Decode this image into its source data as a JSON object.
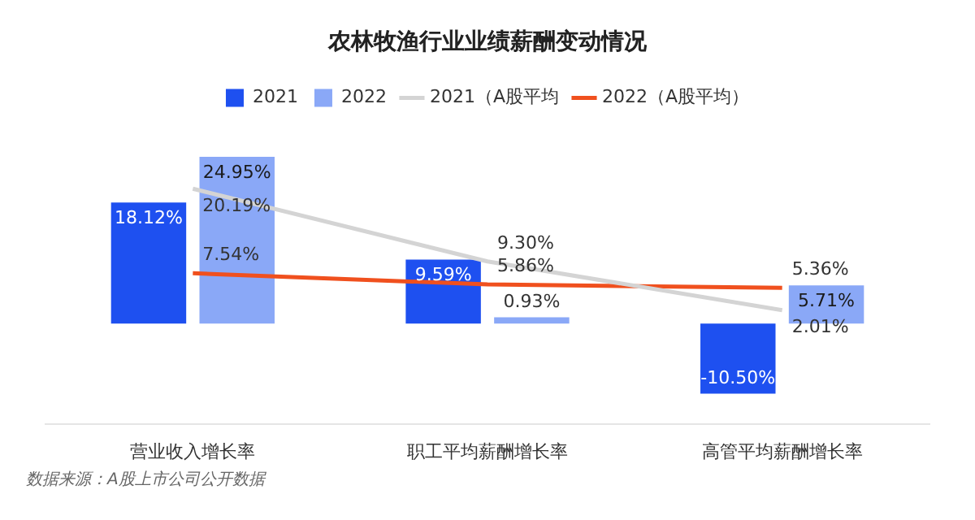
{
  "chart_data": {
    "type": "bar",
    "title": "农林牧渔行业业绩薪酬变动情况",
    "categories": [
      "营业收入增长率",
      "职工平均薪酬增长率",
      "高管平均薪酬增长率"
    ],
    "series": [
      {
        "name": "2021",
        "color": "#1e50f0",
        "values": [
          18.12,
          9.59,
          -10.5
        ],
        "value_labels": [
          "18.12%",
          "9.59%",
          "-10.50%"
        ]
      },
      {
        "name": "2022",
        "color": "#8aa8f7",
        "values": [
          24.95,
          0.93,
          5.71
        ],
        "value_labels": [
          "24.95%",
          "0.93%",
          "5.71%"
        ]
      },
      {
        "name": "2021（A股平均",
        "type": "line",
        "color": "#d4d4d4",
        "values": [
          20.19,
          9.3,
          2.01
        ],
        "value_labels": [
          "20.19%",
          "9.30%",
          "2.01%"
        ]
      },
      {
        "name": "2022（A股平均）",
        "type": "line",
        "color": "#f0501e",
        "values": [
          7.54,
          5.86,
          5.36
        ],
        "value_labels": [
          "7.54%",
          "5.86%",
          "5.36%"
        ]
      }
    ],
    "legend": "top",
    "grid": false,
    "marker": "none",
    "annotations": [
      "数据来源：A股上市公司公开数据"
    ]
  }
}
